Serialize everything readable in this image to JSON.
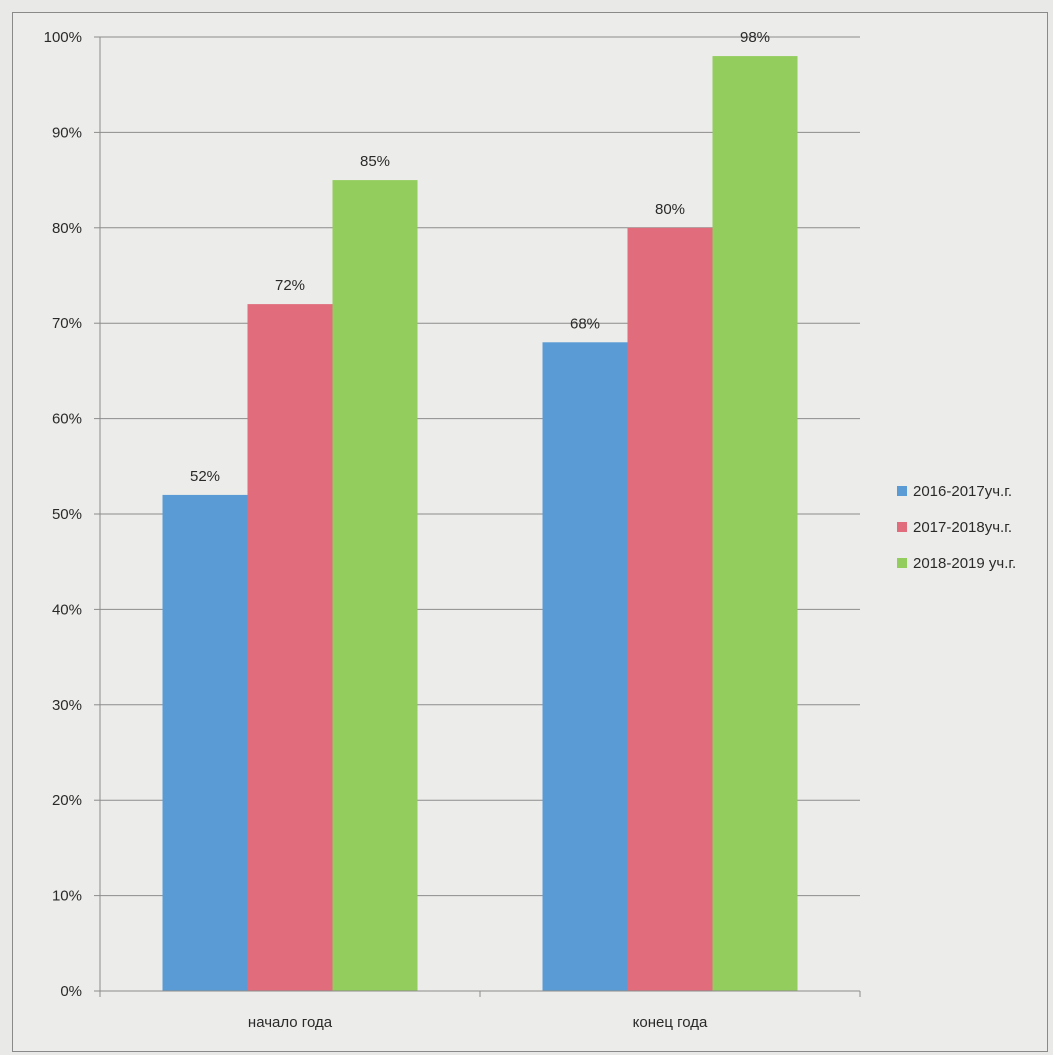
{
  "chart_data": {
    "type": "bar",
    "title": "",
    "xlabel": "",
    "ylabel": "",
    "categories": [
      "начало года",
      "конец года"
    ],
    "series": [
      {
        "name": "2016-2017уч.г.",
        "values": [
          52,
          68
        ],
        "labels": [
          "52%",
          "68%"
        ],
        "color": "#5b9bd5"
      },
      {
        "name": "2017-2018уч.г.",
        "values": [
          72,
          80
        ],
        "labels": [
          "72%",
          "80%"
        ],
        "color": "#e06c7c"
      },
      {
        "name": "2018-2019 уч.г.",
        "values": [
          85,
          98
        ],
        "labels": [
          "85%",
          "98%"
        ],
        "color": "#93cd5e"
      }
    ],
    "ylim": [
      0,
      100
    ],
    "yticks": [
      0,
      10,
      20,
      30,
      40,
      50,
      60,
      70,
      80,
      90,
      100
    ],
    "ytick_labels": [
      "0%",
      "10%",
      "20%",
      "30%",
      "40%",
      "50%",
      "60%",
      "70%",
      "80%",
      "90%",
      "100%"
    ],
    "grid": true,
    "legend": "right"
  }
}
